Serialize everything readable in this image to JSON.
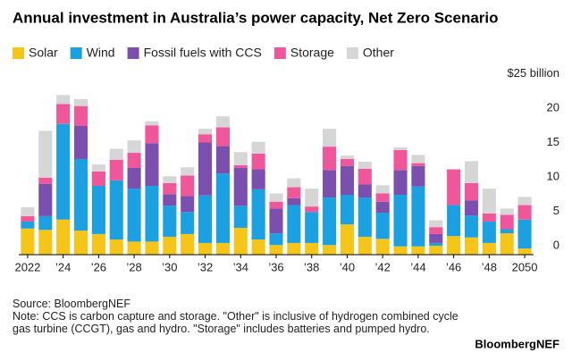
{
  "chart_data": {
    "type": "stacked-bar",
    "title": "Annual investment in Australia’s power capacity, Net Zero Scenario",
    "categories": [
      "2022",
      null,
      "’24",
      null,
      "’26",
      null,
      "’28",
      null,
      "’30",
      null,
      "’32",
      null,
      "’34",
      null,
      "’36",
      null,
      "’38",
      null,
      "’40",
      null,
      "’42",
      null,
      "’44",
      null,
      "’46",
      null,
      "’48",
      null,
      "2050"
    ],
    "series": [
      {
        "name": "Solar",
        "color": "#f5c518",
        "values": [
          3.8,
          3.6,
          5.1,
          3.5,
          3.0,
          2.2,
          1.9,
          1.9,
          2.6,
          3.0,
          1.7,
          1.7,
          3.9,
          2.2,
          1.4,
          1.7,
          1.7,
          1.4,
          4.4,
          2.6,
          2.3,
          1.2,
          1.2,
          1.3,
          2.7,
          2.5,
          1.7,
          3.1,
          0.9
        ]
      },
      {
        "name": "Wind",
        "color": "#1ba0e2",
        "values": [
          1.0,
          2.0,
          13.9,
          10.4,
          7.0,
          8.6,
          7.7,
          8.1,
          4.5,
          3.2,
          6.9,
          10.1,
          3.2,
          7.3,
          1.7,
          5.5,
          4.5,
          6.9,
          4.3,
          5.7,
          3.8,
          7.5,
          8.7,
          0.4,
          4.5,
          3.2,
          3.1,
          0.6,
          4.2
        ]
      },
      {
        "name": "Fossil fuels with CCS",
        "color": "#7b4fae",
        "values": [
          0,
          4.7,
          0,
          4.8,
          0,
          0,
          3.0,
          6.2,
          1.7,
          2.3,
          7.7,
          4.0,
          5.5,
          2.9,
          3.6,
          1.0,
          0,
          4.0,
          4.2,
          1.9,
          1.6,
          3.6,
          3.0,
          1.3,
          0,
          2.2,
          0,
          0,
          0
        ]
      },
      {
        "name": "Storage",
        "color": "#f0569a",
        "values": [
          0.8,
          0.9,
          2.9,
          2.9,
          2.1,
          3.0,
          2.2,
          2.6,
          1.6,
          3.0,
          1.2,
          2.7,
          0.4,
          2.3,
          1.0,
          1.6,
          0.8,
          3.4,
          1.0,
          2.3,
          1.2,
          2.9,
          0.4,
          1.0,
          5.2,
          2.5,
          1.2,
          2.1,
          2.1
        ]
      },
      {
        "name": "Other",
        "color": "#d6d6d6",
        "values": [
          1.3,
          6.8,
          1.3,
          1.0,
          1.0,
          1.6,
          1.8,
          0.6,
          1.0,
          1.2,
          0.8,
          1.6,
          1.9,
          1.7,
          1.2,
          1.3,
          2.6,
          2.6,
          0.5,
          1.0,
          1.2,
          0.4,
          1.2,
          1.0,
          0,
          3.2,
          3.6,
          0.9,
          1.2
        ]
      }
    ],
    "ylim": [
      0,
      25
    ],
    "yticks": [
      0,
      5,
      10,
      15,
      20,
      {
        "value": 25,
        "label": "$25 billion"
      }
    ],
    "grid": false,
    "source": "Source: BloombergNEF",
    "note": "Note: CCS is carbon capture and storage. \"Other\" is inclusive of hydrogen combined cycle gas turbine (CCGT), gas and hydro. \"Storage\" includes batteries and pumped hydro.",
    "branding": "BloombergNEF"
  }
}
